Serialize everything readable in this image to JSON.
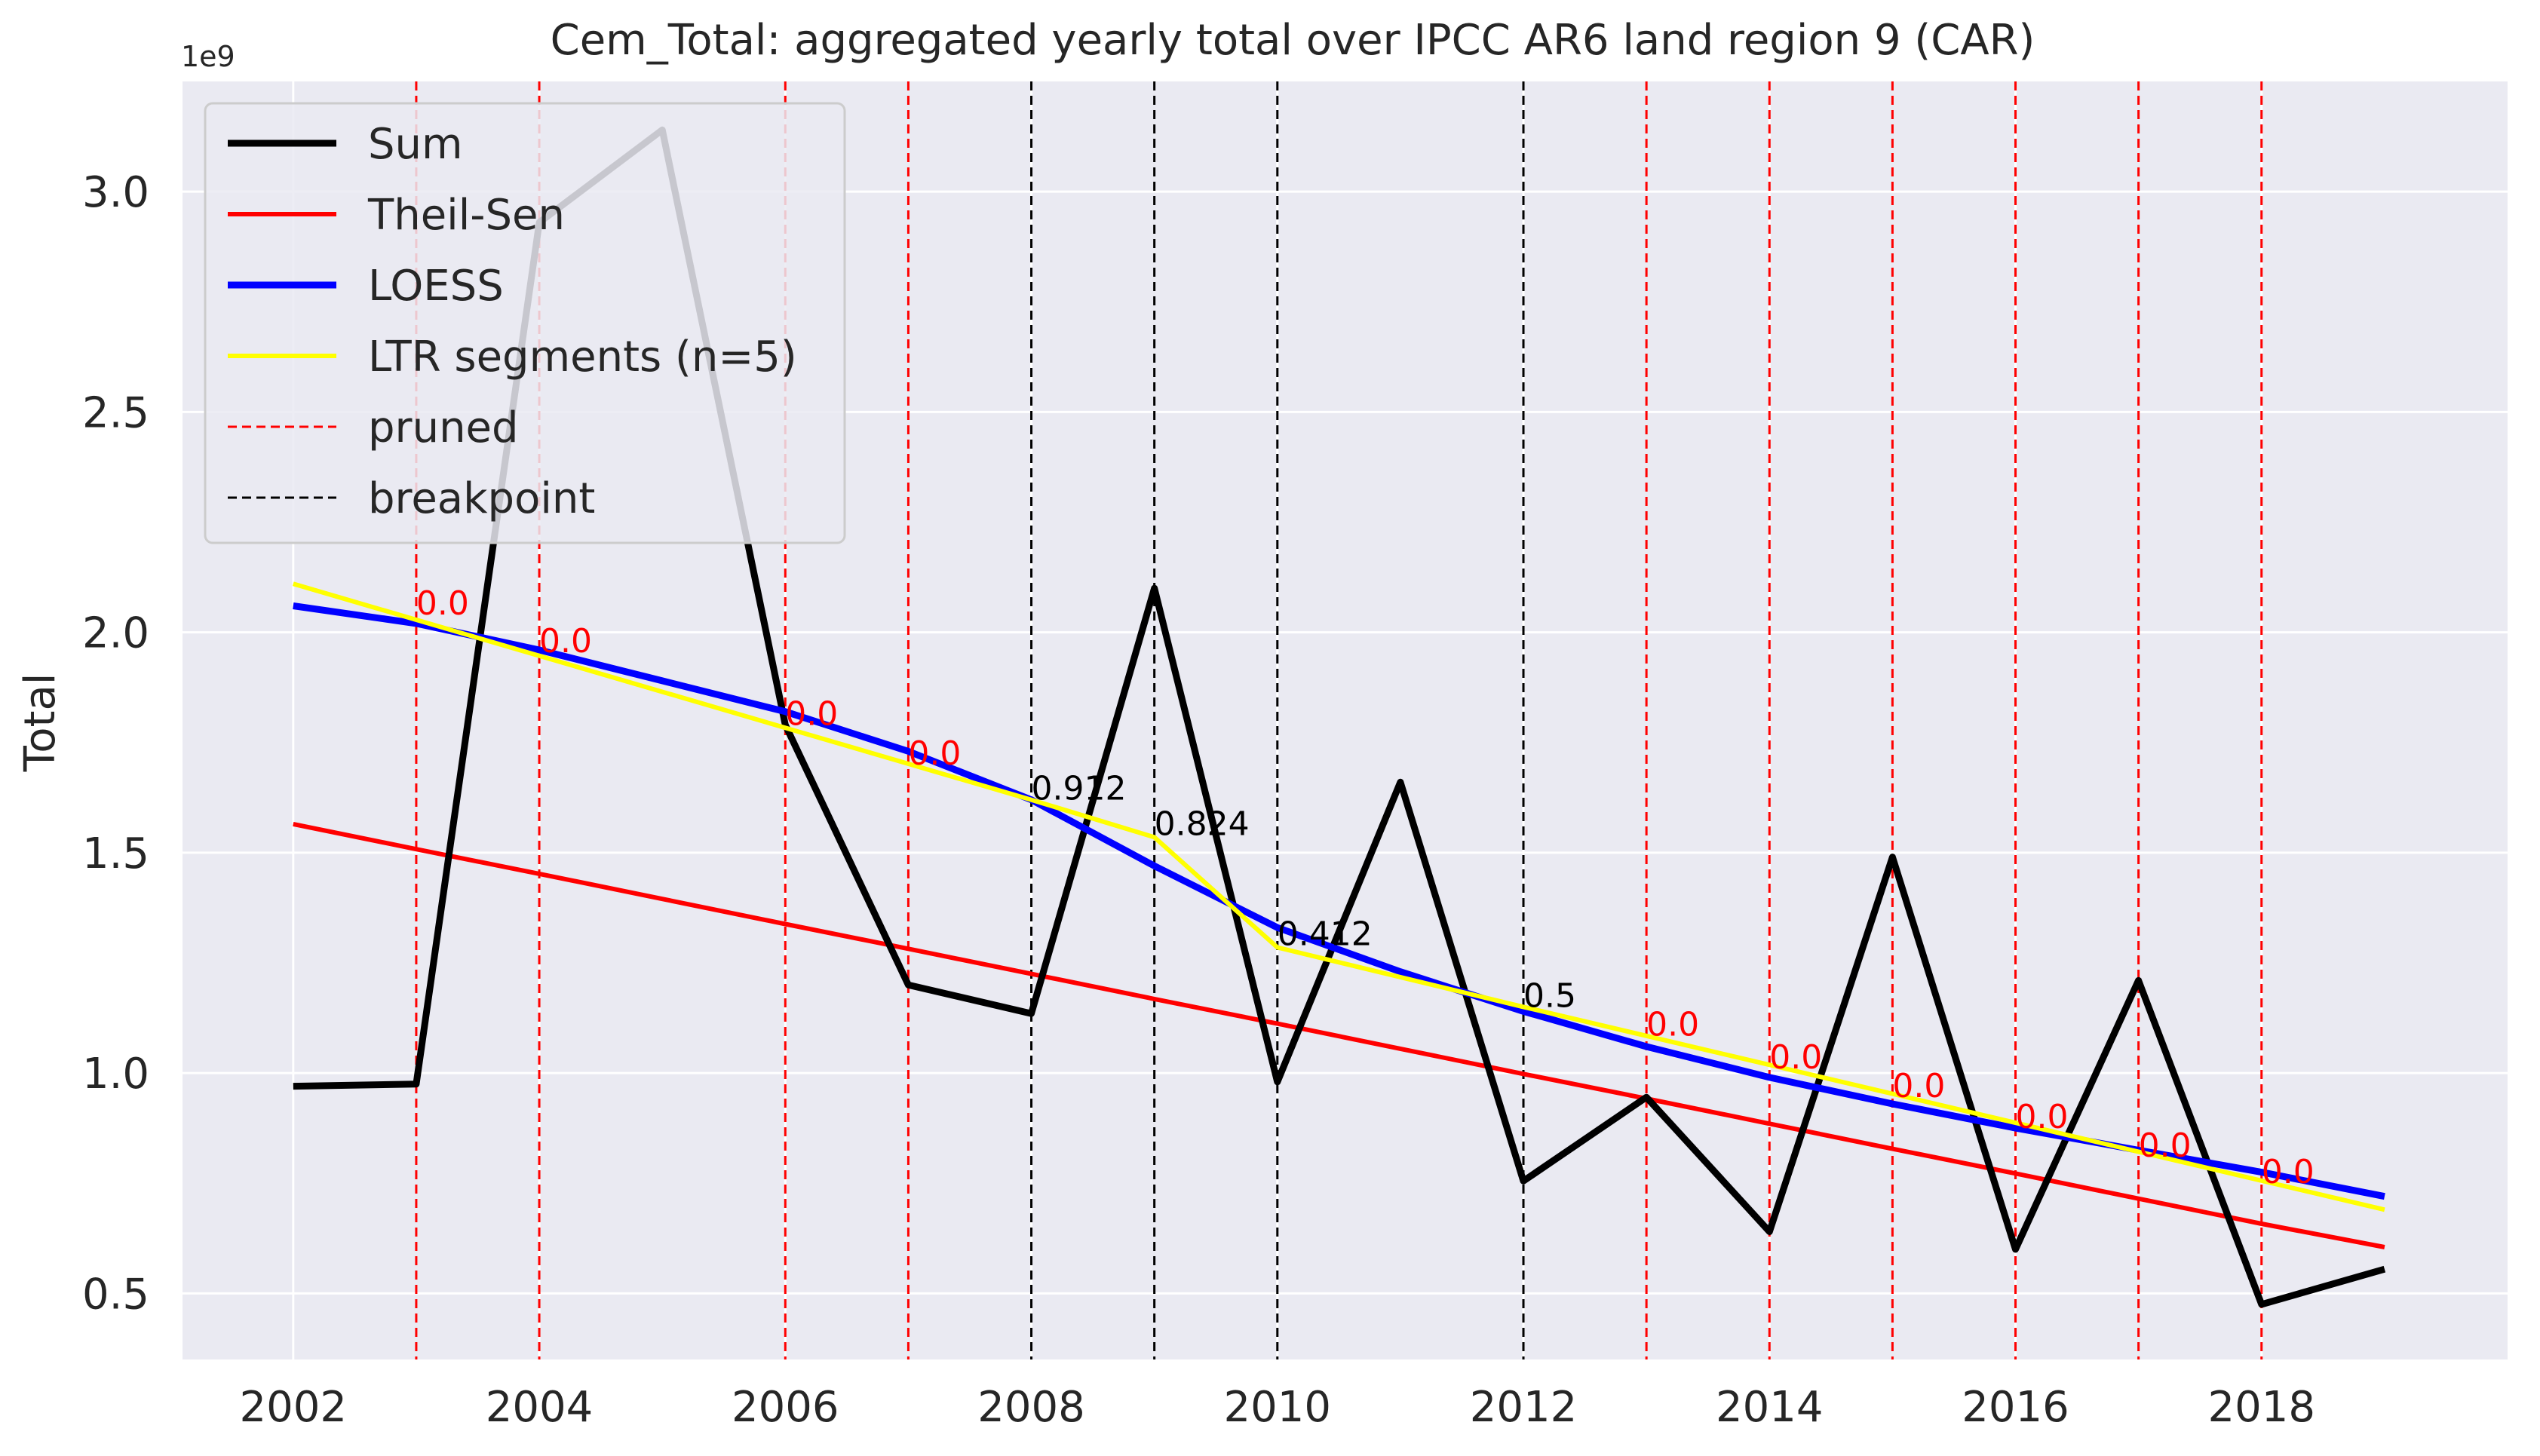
{
  "chart_data": {
    "type": "line",
    "title": "Cem_Total: aggregated yearly total over IPCC AR6 land region 9 (CAR)",
    "xlabel": "",
    "ylabel": "Total",
    "y_offset_label": "1e9",
    "xlim": [
      2001.1,
      2020.0
    ],
    "ylim": [
      0.35,
      3.25
    ],
    "x_ticks": [
      2002,
      2004,
      2006,
      2008,
      2010,
      2012,
      2014,
      2016,
      2018
    ],
    "y_ticks": [
      0.5,
      1.0,
      1.5,
      2.0,
      2.5,
      3.0
    ],
    "y_tick_labels": [
      "0.5",
      "1.0",
      "1.5",
      "2.0",
      "2.5",
      "3.0"
    ],
    "grid": true,
    "legend_position": "top-left",
    "background": "#eaeaf2",
    "x": [
      2002,
      2003,
      2004,
      2005,
      2006,
      2007,
      2008,
      2009,
      2010,
      2011,
      2012,
      2013,
      2014,
      2015,
      2016,
      2017,
      2018,
      2019
    ],
    "series": [
      {
        "name": "Sum",
        "color": "#000000",
        "style": "solid",
        "width": 9,
        "values": [
          0.97,
          0.975,
          2.93,
          3.14,
          1.79,
          1.2,
          1.135,
          2.1,
          0.98,
          1.66,
          0.755,
          0.945,
          0.64,
          1.49,
          0.6,
          1.21,
          0.475,
          0.555
        ]
      },
      {
        "name": "Theil-Sen",
        "color": "#ff0000",
        "style": "solid",
        "width": 6,
        "values": [
          1.565,
          1.508,
          1.452,
          1.395,
          1.338,
          1.282,
          1.225,
          1.168,
          1.112,
          1.055,
          0.998,
          0.942,
          0.885,
          0.828,
          0.772,
          0.715,
          0.658,
          0.605
        ]
      },
      {
        "name": "LOESS",
        "color": "#0000ff",
        "style": "solid",
        "width": 9,
        "values": [
          2.06,
          2.02,
          1.96,
          1.89,
          1.82,
          1.73,
          1.62,
          1.47,
          1.33,
          1.23,
          1.14,
          1.06,
          0.99,
          0.93,
          0.875,
          0.825,
          0.775,
          0.72
        ]
      },
      {
        "name": "LTR segments (n=5)",
        "color": "#ffff00",
        "style": "solid",
        "width": 6,
        "x": [
          2002,
          2008,
          2009,
          2010,
          2012,
          2019
        ],
        "values": [
          2.11,
          1.62,
          1.535,
          1.285,
          1.15,
          0.69
        ]
      }
    ],
    "legend": [
      {
        "label": "Sum",
        "color": "#000000",
        "style": "solid"
      },
      {
        "label": "Theil-Sen",
        "color": "#ff0000",
        "style": "solid"
      },
      {
        "label": "LOESS",
        "color": "#0000ff",
        "style": "solid"
      },
      {
        "label": "LTR segments (n=5)",
        "color": "#ffff00",
        "style": "solid"
      },
      {
        "label": "pruned",
        "color": "#ff0000",
        "style": "dashed"
      },
      {
        "label": "breakpoint",
        "color": "#000000",
        "style": "dashed"
      }
    ],
    "vlines": [
      {
        "x": 2003,
        "kind": "pruned",
        "color": "#ff0000",
        "label": "0.0",
        "label_y": 2.04
      },
      {
        "x": 2004,
        "kind": "pruned",
        "color": "#ff0000",
        "label": "0.0",
        "label_y": 1.955
      },
      {
        "x": 2006,
        "kind": "pruned",
        "color": "#ff0000",
        "label": "0.0",
        "label_y": 1.79
      },
      {
        "x": 2007,
        "kind": "pruned",
        "color": "#ff0000",
        "label": "0.0",
        "label_y": 1.7
      },
      {
        "x": 2008,
        "kind": "breakpoint",
        "color": "#000000",
        "label": "0.912",
        "label_y": 1.62
      },
      {
        "x": 2009,
        "kind": "breakpoint",
        "color": "#000000",
        "label": "0.824",
        "label_y": 1.54
      },
      {
        "x": 2010,
        "kind": "breakpoint",
        "color": "#000000",
        "label": "0.412",
        "label_y": 1.29
      },
      {
        "x": 2012,
        "kind": "breakpoint",
        "color": "#000000",
        "label": "0.5",
        "label_y": 1.15
      },
      {
        "x": 2013,
        "kind": "pruned",
        "color": "#ff0000",
        "label": "0.0",
        "label_y": 1.085
      },
      {
        "x": 2014,
        "kind": "pruned",
        "color": "#ff0000",
        "label": "0.0",
        "label_y": 1.01
      },
      {
        "x": 2015,
        "kind": "pruned",
        "color": "#ff0000",
        "label": "0.0",
        "label_y": 0.945
      },
      {
        "x": 2016,
        "kind": "pruned",
        "color": "#ff0000",
        "label": "0.0",
        "label_y": 0.875
      },
      {
        "x": 2017,
        "kind": "pruned",
        "color": "#ff0000",
        "label": "0.0",
        "label_y": 0.81
      },
      {
        "x": 2018,
        "kind": "pruned",
        "color": "#ff0000",
        "label": "0.0",
        "label_y": 0.75
      }
    ]
  }
}
